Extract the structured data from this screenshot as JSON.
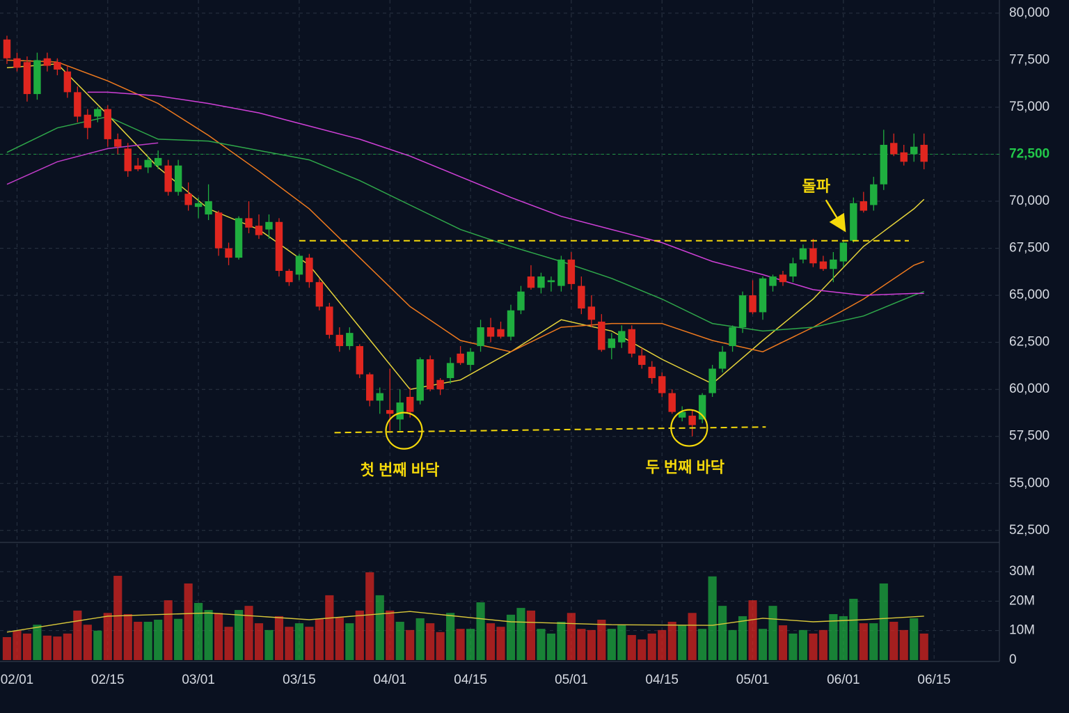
{
  "chart_data": {
    "type": "candlestick",
    "up_color": "#1fae3f",
    "down_color": "#e0261f",
    "xlim": [
      -0.69,
      98.48
    ],
    "xticks": [
      {
        "value": 1,
        "label": "02/01"
      },
      {
        "value": 10,
        "label": "02/15"
      },
      {
        "value": 19,
        "label": "03/01"
      },
      {
        "value": 29,
        "label": "03/15"
      },
      {
        "value": 38,
        "label": "04/01"
      },
      {
        "value": 46,
        "label": "04/15"
      },
      {
        "value": 56,
        "label": "05/01"
      },
      {
        "value": 65,
        "label": "04/15"
      },
      {
        "value": 74,
        "label": "05/01"
      },
      {
        "value": 83,
        "label": "06/01"
      },
      {
        "value": 92,
        "label": "06/15"
      }
    ],
    "ylim": [
      51900,
      80700
    ],
    "yticks": [
      {
        "value": 52500,
        "label": "52,500"
      },
      {
        "value": 55000,
        "label": "55,000"
      },
      {
        "value": 57500,
        "label": "57,500"
      },
      {
        "value": 60000,
        "label": "60,000"
      },
      {
        "value": 62500,
        "label": "62,500"
      },
      {
        "value": 65000,
        "label": "65,000"
      },
      {
        "value": 67500,
        "label": "67,500"
      },
      {
        "value": 70000,
        "label": "70,000"
      },
      {
        "value": 72500,
        "label": "72,500"
      },
      {
        "value": 75000,
        "label": "75,000"
      },
      {
        "value": 77500,
        "label": "77,500"
      },
      {
        "value": 80000,
        "label": "80,000"
      }
    ],
    "grid": true,
    "current_price": 72500,
    "current_price_color": "#22c84a",
    "candles": {
      "open": [
        78600,
        77600,
        77400,
        75700,
        77600,
        77400,
        76900,
        75800,
        74600,
        74500,
        74900,
        73300,
        72800,
        71900,
        71800,
        71900,
        71900,
        70500,
        70400,
        69700,
        69300,
        69400,
        67500,
        67000,
        69100,
        68700,
        68500,
        68900,
        66300,
        66100,
        67000,
        65700,
        64400,
        62900,
        62300,
        62300,
        60800,
        59400,
        58900,
        58400,
        59600,
        59400,
        61600,
        60500,
        60600,
        61900,
        61300,
        62300,
        63300,
        63200,
        62800,
        64200,
        66000,
        65400,
        65700,
        65500,
        66900,
        65500,
        64400,
        63600,
        62200,
        62500,
        63200,
        61800,
        61200,
        60700,
        59800,
        58500,
        58600,
        58400,
        59800,
        61100,
        62300,
        63300,
        65000,
        64100,
        65500,
        66100,
        66000,
        66900,
        67500,
        66800,
        66400,
        66800,
        67900,
        70000,
        69800,
        70900,
        73100,
        72600,
        72500,
        73000
      ],
      "high": [
        78800,
        77900,
        77700,
        77900,
        77900,
        77600,
        77200,
        76100,
        74900,
        75000,
        75100,
        73600,
        73100,
        72300,
        72400,
        72700,
        72200,
        72200,
        71000,
        70200,
        70900,
        69500,
        67800,
        69200,
        70000,
        69300,
        69300,
        69100,
        66400,
        67200,
        67200,
        65900,
        64600,
        63300,
        63300,
        62400,
        60900,
        60100,
        61100,
        60000,
        60100,
        61700,
        61800,
        60600,
        61700,
        62300,
        62200,
        63700,
        63800,
        63600,
        64500,
        65500,
        66600,
        66200,
        66000,
        67100,
        67300,
        66000,
        65000,
        64000,
        63000,
        63400,
        63400,
        62200,
        61500,
        60900,
        60000,
        59100,
        58900,
        59800,
        61300,
        62300,
        63400,
        65200,
        65800,
        66000,
        66100,
        66300,
        67000,
        67700,
        68000,
        67100,
        67300,
        67900,
        70200,
        70500,
        71300,
        73800,
        73600,
        73000,
        73600,
        73600
      ],
      "low": [
        77300,
        76900,
        75300,
        75400,
        76900,
        76700,
        75500,
        74200,
        73300,
        74200,
        72900,
        72500,
        71300,
        71600,
        71500,
        71700,
        70300,
        70300,
        69500,
        69100,
        69000,
        67100,
        66600,
        66900,
        68300,
        68000,
        68000,
        66000,
        65500,
        65800,
        65400,
        64200,
        62700,
        62000,
        62100,
        60600,
        59100,
        58700,
        57800,
        57800,
        58500,
        59200,
        59900,
        59700,
        60300,
        61300,
        61000,
        62000,
        62500,
        62700,
        62600,
        64000,
        65300,
        65100,
        65200,
        65200,
        65300,
        64000,
        63300,
        62000,
        61600,
        62200,
        61700,
        61100,
        60300,
        59600,
        58700,
        58300,
        57500,
        58200,
        59600,
        60900,
        62000,
        63000,
        64000,
        63700,
        65200,
        65500,
        65700,
        66700,
        66500,
        66300,
        65700,
        66500,
        67800,
        69400,
        69500,
        70600,
        72400,
        71900,
        72100,
        71700
      ],
      "close": [
        77600,
        77100,
        75700,
        77500,
        77200,
        77000,
        75800,
        74500,
        73900,
        74900,
        73300,
        72900,
        71600,
        71700,
        72200,
        72300,
        70500,
        71900,
        69800,
        69900,
        70000,
        67500,
        67000,
        69100,
        68600,
        68200,
        68900,
        66300,
        65700,
        67100,
        65700,
        64400,
        62900,
        62300,
        63000,
        60800,
        59400,
        59800,
        58700,
        59300,
        58800,
        61600,
        60000,
        60000,
        61400,
        61400,
        62000,
        63300,
        62800,
        62800,
        64200,
        65200,
        65400,
        66000,
        65800,
        66900,
        65600,
        64300,
        63700,
        62100,
        62700,
        63100,
        61900,
        61300,
        60600,
        59800,
        58800,
        58800,
        58100,
        59700,
        61100,
        62000,
        63300,
        65000,
        64100,
        65900,
        66000,
        65700,
        66700,
        67500,
        66700,
        66400,
        66900,
        67800,
        69900,
        69500,
        70900,
        73000,
        72500,
        72100,
        72900,
        72100
      ]
    },
    "moving_averages": [
      {
        "color": "#e6d43a",
        "x": [
          0,
          5,
          10,
          15,
          20,
          25,
          30,
          35,
          40,
          45,
          50,
          55,
          60,
          65,
          70,
          75,
          80,
          85,
          90,
          91
        ],
        "values": [
          77100,
          77300,
          74600,
          71800,
          69600,
          68500,
          66600,
          63300,
          60000,
          60500,
          62000,
          63700,
          63100,
          61600,
          60300,
          62600,
          64800,
          67600,
          69600,
          70100
        ]
      },
      {
        "color": "#f07a1e",
        "x": [
          0,
          5,
          10,
          15,
          20,
          25,
          30,
          35,
          40,
          45,
          50,
          55,
          60,
          65,
          70,
          75,
          80,
          85,
          90,
          91
        ],
        "values": [
          77500,
          77400,
          76400,
          75200,
          73500,
          71600,
          69600,
          67000,
          64400,
          62600,
          62000,
          63300,
          63500,
          63500,
          62600,
          62000,
          63300,
          64800,
          66600,
          66800
        ]
      },
      {
        "color": "#2fa84a",
        "x": [
          0,
          5,
          10,
          15,
          20,
          25,
          30,
          35,
          40,
          45,
          50,
          55,
          60,
          65,
          70,
          75,
          80,
          85,
          90,
          91
        ],
        "values": [
          72600,
          73900,
          74500,
          73300,
          73200,
          72700,
          72200,
          71100,
          69800,
          68500,
          67600,
          66800,
          65900,
          64800,
          63500,
          63100,
          63300,
          63900,
          65000,
          65200
        ]
      },
      {
        "color": "#d040d8",
        "x": [
          8,
          10,
          15,
          20,
          25,
          30,
          35,
          40,
          45,
          50,
          55,
          60,
          65,
          70,
          75,
          80,
          85,
          90,
          91
        ],
        "values": [
          75800,
          75800,
          75600,
          75200,
          74700,
          74000,
          73300,
          72400,
          71300,
          70200,
          69200,
          68500,
          67800,
          66800,
          66100,
          65300,
          65000,
          65100,
          65100
        ]
      },
      {
        "color": "#c03cc8",
        "x": [
          0,
          5,
          10,
          15
        ],
        "values": [
          70900,
          72100,
          72800,
          73100
        ]
      }
    ],
    "volume": {
      "ylim": [
        0,
        39700000
      ],
      "yticks": [
        0,
        {
          "value": 10000000,
          "label": "10M"
        },
        {
          "value": 20000000,
          "label": "20M"
        },
        {
          "value": 30000000,
          "label": "30M"
        }
      ],
      "values": [
        7800000,
        10000000,
        9000000,
        12000000,
        8300000,
        8000000,
        9000000,
        16800000,
        12000000,
        10000000,
        16000000,
        28600000,
        15600000,
        13000000,
        13000000,
        13700000,
        20300000,
        14000000,
        26000000,
        19400000,
        17000000,
        16000000,
        11300000,
        17000000,
        18400000,
        12500000,
        10200000,
        14900000,
        11300000,
        12500000,
        11300000,
        14000000,
        22000000,
        14400000,
        12500000,
        16800000,
        29800000,
        22000000,
        16800000,
        13000000,
        10200000,
        14200000,
        12500000,
        9500000,
        16000000,
        10600000,
        10600000,
        19600000,
        12500000,
        11300000,
        15400000,
        17700000,
        16800000,
        10600000,
        9000000,
        13000000,
        16000000,
        10600000,
        10200000,
        13700000,
        10600000,
        11800000,
        8500000,
        7000000,
        9000000,
        10200000,
        13000000,
        11800000,
        16000000,
        10600000,
        28400000,
        18400000,
        10200000,
        14900000,
        20300000,
        10600000,
        18400000,
        11800000,
        9000000,
        10200000,
        9000000,
        10200000,
        15600000,
        14900000,
        20800000,
        12500000,
        12500000,
        26000000,
        13000000,
        10200000,
        14200000,
        9000000
      ],
      "average": {
        "color": "#d9c83a",
        "x": [
          0,
          10,
          20,
          30,
          40,
          50,
          60,
          70,
          75,
          80,
          85,
          91
        ],
        "values": [
          9500000,
          14900000,
          16000000,
          13700000,
          16500000,
          13000000,
          12000000,
          11800000,
          14200000,
          13000000,
          13700000,
          14900000
        ]
      }
    },
    "annotation_color": "#f5d90a",
    "resistance": {
      "value": 67900,
      "x": [
        29,
        89.5
      ]
    },
    "support": {
      "x": [
        32.5,
        75.3
      ],
      "values": [
        57700,
        58000
      ]
    },
    "bottoms": [
      {
        "label": "첫 번째 바닥",
        "x": 39.4,
        "value": 57800
      },
      {
        "label": "두 번째 바닥",
        "x": 67.7,
        "value": 57950
      }
    ],
    "breakout": {
      "label": "돌파",
      "x": 83.2,
      "value": 68400
    }
  }
}
